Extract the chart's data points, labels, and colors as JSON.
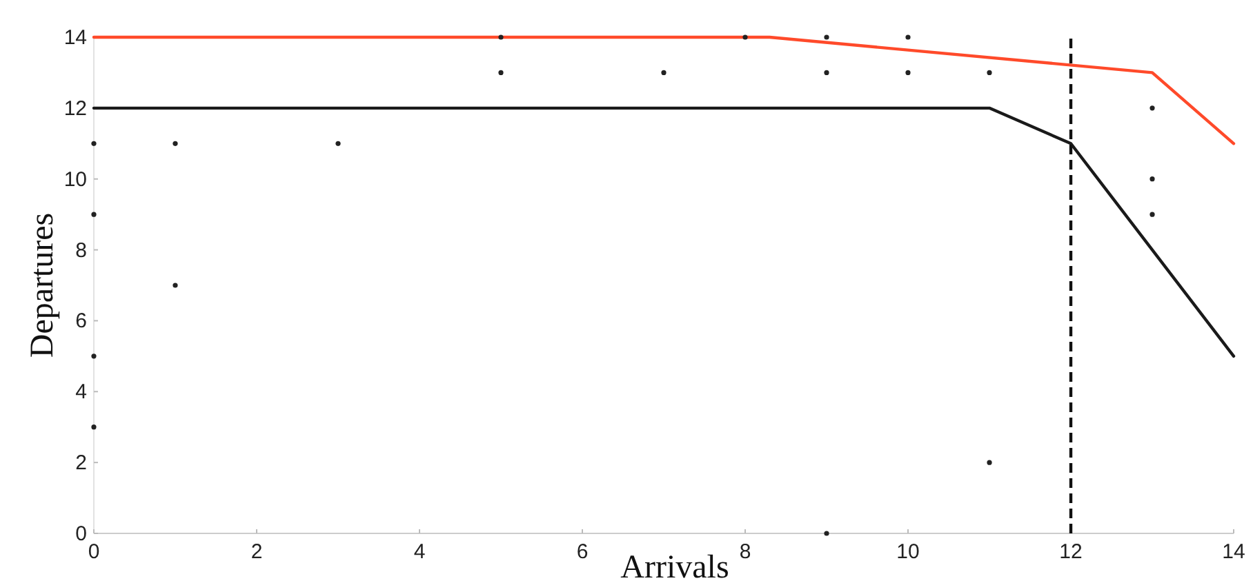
{
  "chart_data": {
    "type": "line",
    "xlabel": "Arrivals",
    "ylabel": "Departures",
    "xlim": [
      0,
      14
    ],
    "ylim": [
      0,
      14
    ],
    "xticks": [
      0,
      2,
      4,
      6,
      8,
      10,
      12,
      14
    ],
    "yticks": [
      0,
      2,
      4,
      6,
      8,
      10,
      12,
      14
    ],
    "grid": false,
    "marker": "none",
    "series": [
      {
        "color": "#ff4a2a",
        "x": [
          0,
          8.3,
          13,
          14
        ],
        "values": [
          14,
          14,
          13,
          11
        ]
      },
      {
        "color": "#1a1a1a",
        "x": [
          0,
          11,
          12,
          14
        ],
        "values": [
          12,
          12,
          11,
          5
        ]
      },
      {
        "type": "scatter",
        "color": "#222222",
        "marker": "circle",
        "x": [
          0,
          1,
          3,
          1,
          5,
          5,
          7,
          8,
          9,
          9,
          10,
          10,
          11,
          13,
          13,
          13,
          11,
          9,
          0,
          0,
          0
        ],
        "values": [
          11,
          11,
          11,
          7,
          14,
          13,
          13,
          14,
          14,
          13,
          14,
          13,
          13,
          12,
          10,
          9,
          2,
          0,
          9,
          5,
          3
        ]
      }
    ],
    "ref_lines": [
      {
        "axis": "x",
        "value": 12,
        "color": "#111111",
        "line_style": "dashed"
      }
    ]
  }
}
